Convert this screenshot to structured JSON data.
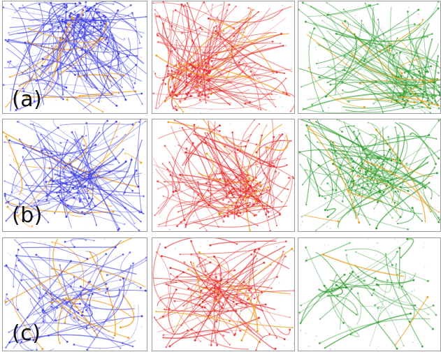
{
  "figure": {
    "rows": [
      {
        "label": "(a)"
      },
      {
        "label": "(b)"
      },
      {
        "label": "(c)"
      }
    ],
    "columns": [
      {
        "color": "#3a3ae6"
      },
      {
        "color": "#e62a2a"
      },
      {
        "color": "#2a9a2a"
      }
    ],
    "accent_color": "#f0a020"
  }
}
